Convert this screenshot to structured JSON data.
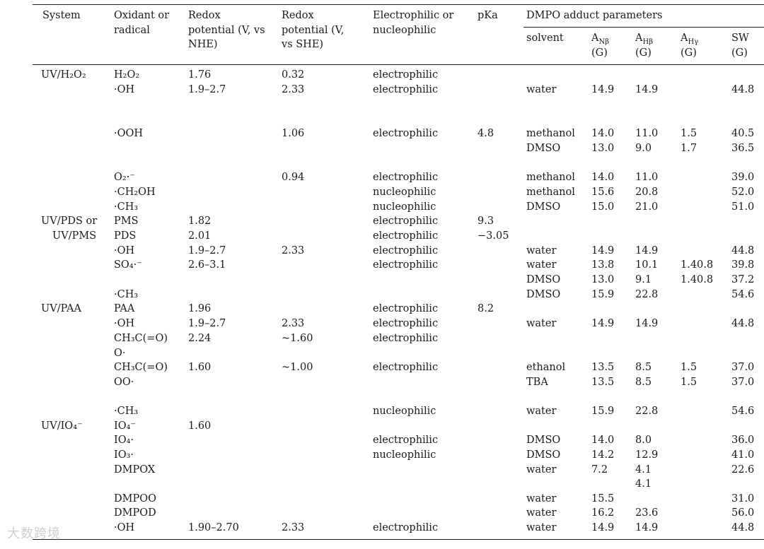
{
  "headers": {
    "system": "System",
    "oxidant": "Oxidant or radical",
    "redox_nhe": "Redox potential (V, vs NHE)",
    "redox_she": "Redox potential (V, vs SHE)",
    "electro": "Electrophilic or nucleophilic",
    "pka": "pKa",
    "dmpo": "DMPO adduct parameters",
    "solvent": "solvent",
    "anb": "A",
    "anb_sub": "Nβ",
    "ahb": "A",
    "ahb_sub": "Hβ",
    "ahg": "A",
    "ahg_sub": "Hγ",
    "sw": "SW",
    "unit": "(G)"
  },
  "rows": [
    {
      "sys": "UV/H₂O₂",
      "ox": "H₂O₂",
      "nhe": "1.76",
      "she": "0.32",
      "el": "electrophilic",
      "pka": "",
      "sol": "",
      "anb": "",
      "ahb": "",
      "ahg": "",
      "sw": ""
    },
    {
      "sys": "",
      "ox": "·OH",
      "nhe": "1.9–2.7",
      "she": "2.33",
      "el": "electrophilic",
      "pka": "",
      "sol": "water",
      "anb": "14.9",
      "ahb": "14.9",
      "ahg": "",
      "sw": "44.8"
    },
    {
      "sys": "",
      "ox": "·OOH",
      "nhe": "",
      "she": "1.06",
      "el": "electrophilic",
      "pka": "4.8",
      "sol": "methanol",
      "anb": "14.0",
      "ahb": "11.0",
      "ahg": "1.5",
      "sw": "40.5"
    },
    {
      "sys": "",
      "ox": "",
      "nhe": "",
      "she": "",
      "el": "",
      "pka": "",
      "sol": "DMSO",
      "anb": "13.0",
      "ahb": "9.0",
      "ahg": "1.7",
      "sw": "36.5"
    },
    {
      "sys": "",
      "ox": "O₂·⁻",
      "nhe": "",
      "she": "0.94",
      "el": "electrophilic",
      "pka": "",
      "sol": "methanol",
      "anb": "14.0",
      "ahb": "11.0",
      "ahg": "",
      "sw": "39.0"
    },
    {
      "sys": "",
      "ox": "·CH₂OH",
      "nhe": "",
      "she": "",
      "el": "nucleophilic",
      "pka": "",
      "sol": "methanol",
      "anb": "15.6",
      "ahb": "20.8",
      "ahg": "",
      "sw": "52.0"
    },
    {
      "sys": "",
      "ox": "·CH₃",
      "nhe": "",
      "she": "",
      "el": "nucleophilic",
      "pka": "",
      "sol": "DMSO",
      "anb": "15.0",
      "ahb": "21.0",
      "ahg": "",
      "sw": "51.0"
    },
    {
      "sys": "UV/PDS or",
      "ox": "PMS",
      "nhe": "1.82",
      "she": "",
      "el": "electrophilic",
      "pka": "9.3",
      "sol": "",
      "anb": "",
      "ahb": "",
      "ahg": "",
      "sw": ""
    },
    {
      "sys": "UV/PMS",
      "ox": "PDS",
      "nhe": "2.01",
      "she": "",
      "el": "electrophilic",
      "pka": "−3.05",
      "sol": "",
      "anb": "",
      "ahb": "",
      "ahg": "",
      "sw": ""
    },
    {
      "sys": "",
      "ox": "·OH",
      "nhe": "1.9–2.7",
      "she": "2.33",
      "el": "electrophilic",
      "pka": "",
      "sol": "water",
      "anb": "14.9",
      "ahb": "14.9",
      "ahg": "",
      "sw": "44.8"
    },
    {
      "sys": "",
      "ox": "SO₄·⁻",
      "nhe": "2.6–3.1",
      "she": "",
      "el": "electrophilic",
      "pka": "",
      "sol": "water",
      "anb": "13.8",
      "ahb": "10.1",
      "ahg": "1.40.8",
      "sw": "39.8"
    },
    {
      "sys": "",
      "ox": "",
      "nhe": "",
      "she": "",
      "el": "",
      "pka": "",
      "sol": "DMSO",
      "anb": "13.0",
      "ahb": "9.1",
      "ahg": "1.40.8",
      "sw": "37.2"
    },
    {
      "sys": "",
      "ox": "·CH₃",
      "nhe": "",
      "she": "",
      "el": "",
      "pka": "",
      "sol": "DMSO",
      "anb": "15.9",
      "ahb": "22.8",
      "ahg": "",
      "sw": "54.6"
    },
    {
      "sys": "UV/PAA",
      "ox": "PAA",
      "nhe": "1.96",
      "she": "",
      "el": "electrophilic",
      "pka": "8.2",
      "sol": "",
      "anb": "",
      "ahb": "",
      "ahg": "",
      "sw": ""
    },
    {
      "sys": "",
      "ox": "·OH",
      "nhe": "1.9–2.7",
      "she": "2.33",
      "el": "electrophilic",
      "pka": "",
      "sol": "water",
      "anb": "14.9",
      "ahb": "14.9",
      "ahg": "",
      "sw": "44.8"
    },
    {
      "sys": "",
      "ox": "CH₃C(=O)",
      "nhe": "2.24",
      "she": "~1.60",
      "el": "electrophilic",
      "pka": "",
      "sol": "",
      "anb": "",
      "ahb": "",
      "ahg": "",
      "sw": ""
    },
    {
      "sys": "",
      "ox": "O·",
      "nhe": "",
      "she": "",
      "el": "",
      "pka": "",
      "sol": "",
      "anb": "",
      "ahb": "",
      "ahg": "",
      "sw": ""
    },
    {
      "sys": "",
      "ox": "CH₃C(=O)",
      "nhe": "1.60",
      "she": "~1.00",
      "el": "electrophilic",
      "pka": "",
      "sol": "ethanol",
      "anb": "13.5",
      "ahb": "8.5",
      "ahg": "1.5",
      "sw": "37.0"
    },
    {
      "sys": "",
      "ox": "OO·",
      "nhe": "",
      "she": "",
      "el": "",
      "pka": "",
      "sol": "TBA",
      "anb": "13.5",
      "ahb": "8.5",
      "ahg": "1.5",
      "sw": "37.0"
    },
    {
      "sys": "",
      "ox": "·CH₃",
      "nhe": "",
      "she": "",
      "el": "nucleophilic",
      "pka": "",
      "sol": "water",
      "anb": "15.9",
      "ahb": "22.8",
      "ahg": "",
      "sw": "54.6"
    },
    {
      "sys": "UV/IO₄⁻",
      "ox": "IO₄⁻",
      "nhe": "1.60",
      "she": "",
      "el": "",
      "pka": "",
      "sol": "",
      "anb": "",
      "ahb": "",
      "ahg": "",
      "sw": ""
    },
    {
      "sys": "",
      "ox": "IO₄·",
      "nhe": "",
      "she": "",
      "el": "electrophilic",
      "pka": "",
      "sol": "DMSO",
      "anb": "14.0",
      "ahb": "8.0",
      "ahg": "",
      "sw": "36.0"
    },
    {
      "sys": "",
      "ox": "IO₃·",
      "nhe": "",
      "she": "",
      "el": "nucleophilic",
      "pka": "",
      "sol": "DMSO",
      "anb": "14.2",
      "ahb": "12.9",
      "ahg": "",
      "sw": "41.0"
    },
    {
      "sys": "",
      "ox": "DMPOX",
      "nhe": "",
      "she": "",
      "el": "",
      "pka": "",
      "sol": "water",
      "anb": "7.2",
      "ahb": "4.1",
      "ahg": "",
      "sw": "22.6"
    },
    {
      "sys": "",
      "ox": "",
      "nhe": "",
      "she": "",
      "el": "",
      "pka": "",
      "sol": "",
      "anb": "",
      "ahb": "4.1",
      "ahg": "",
      "sw": ""
    },
    {
      "sys": "",
      "ox": "DMPOO",
      "nhe": "",
      "she": "",
      "el": "",
      "pka": "",
      "sol": "water",
      "anb": "15.5",
      "ahb": "",
      "ahg": "",
      "sw": "31.0"
    },
    {
      "sys": "",
      "ox": "DMPOD",
      "nhe": "",
      "she": "",
      "el": "",
      "pka": "",
      "sol": "water",
      "anb": "16.2",
      "ahb": "23.6",
      "ahg": "",
      "sw": "56.0"
    },
    {
      "sys": "",
      "ox": "·OH",
      "nhe": "1.90–2.70",
      "she": "2.33",
      "el": "electrophilic",
      "pka": "",
      "sol": "water",
      "anb": "14.9",
      "ahb": "14.9",
      "ahg": "",
      "sw": "44.8"
    }
  ],
  "watermark": "大数跨境"
}
